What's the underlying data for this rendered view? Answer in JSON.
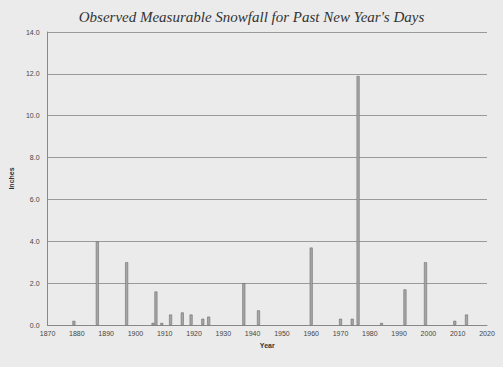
{
  "chart_data": {
    "type": "bar",
    "title": "Observed Measurable Snowfall for Past New Year's Days",
    "x_label": "Year",
    "y_label": "Inches",
    "x": [
      1879,
      1887,
      1897,
      1906,
      1907,
      1909,
      1912,
      1916,
      1919,
      1923,
      1925,
      1937,
      1942,
      1960,
      1970,
      1974,
      1976,
      1984,
      1992,
      1999,
      2009,
      2013
    ],
    "values": [
      0.2,
      4.0,
      3.0,
      0.1,
      1.6,
      0.1,
      0.5,
      0.6,
      0.5,
      0.3,
      0.4,
      2.0,
      0.7,
      3.7,
      0.3,
      0.3,
      11.9,
      0.1,
      1.7,
      3.0,
      0.2,
      0.5
    ],
    "color": "#a6a6a6",
    "xlim": [
      1870,
      2020
    ],
    "xticks": [
      1870,
      1880,
      1890,
      1900,
      1910,
      1920,
      1930,
      1940,
      1950,
      1960,
      1970,
      1980,
      1990,
      2000,
      2010,
      2020
    ],
    "ylim": [
      0,
      14
    ],
    "yticks": [
      {
        "value": 0,
        "label": "0.0"
      },
      {
        "value": 2,
        "label": "2.0"
      },
      {
        "value": 4,
        "label": "4.0"
      },
      {
        "value": 6,
        "label": "6.0"
      },
      {
        "value": 8,
        "label": "8.0"
      },
      {
        "value": 10,
        "label": "10.0"
      },
      {
        "value": 12,
        "label": "12.0"
      },
      {
        "value": 14,
        "label": "14.0"
      }
    ],
    "grid": true
  }
}
